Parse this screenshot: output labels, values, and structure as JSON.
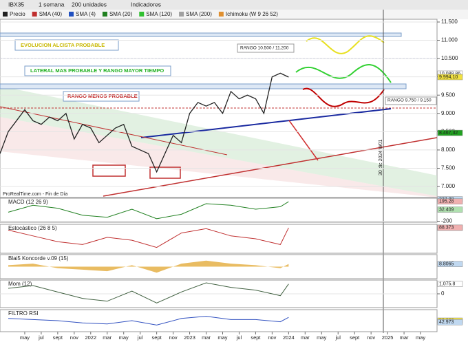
{
  "toolbar": {
    "instrument": "IBX35",
    "period": "1 semana",
    "units": "200 unidades",
    "indicators": "Indicadores"
  },
  "legend": [
    "Precio",
    "SMA (40)",
    "SMA (4)",
    "SMA (20)",
    "SMA (120)",
    "SMA (200)",
    "Ichimoku (W 9 26 52)"
  ],
  "annotations": [
    "EVOLUCION ALCISTA PROBABLE",
    "LATERAL MAS PROBABLE Y RANGO MAYOR TIEMPO",
    "RANGO MENOS PROBABLE",
    "RANGO 10.500 / 11.200",
    "RANGO 9.750 / 9.150",
    "30 dic 2024 W01",
    "ProRealTime.com - Fin de Día"
  ],
  "chart_data": [
    {
      "type": "line",
      "color": "#222222",
      "xlim": [
        "2021-02",
        "2025-07"
      ],
      "ylim": [
        6700,
        11575
      ],
      "xticks": [
        {
          "value": "2021-05",
          "label": "may"
        },
        {
          "value": "2021-07",
          "label": "jul"
        },
        {
          "value": "2021-09",
          "label": "sept"
        },
        {
          "value": "2021-11",
          "label": "nov"
        },
        {
          "value": "2022-01",
          "label": "2022"
        },
        {
          "value": "2022-03",
          "label": "mar"
        },
        {
          "value": "2022-05",
          "label": "may"
        },
        {
          "value": "2022-07",
          "label": "jul"
        },
        {
          "value": "2022-09",
          "label": "sept"
        },
        {
          "value": "2022-11",
          "label": "nov"
        },
        {
          "value": "2023-01",
          "label": "2023"
        },
        {
          "value": "2023-03",
          "label": "mar"
        },
        {
          "value": "2023-05",
          "label": "may"
        },
        {
          "value": "2023-07",
          "label": "jul"
        },
        {
          "value": "2023-09",
          "label": "sept"
        },
        {
          "value": "2023-11",
          "label": "nov"
        },
        {
          "value": "2024-01",
          "label": "2024"
        },
        {
          "value": "2024-03",
          "label": "mar"
        },
        {
          "value": "2024-05",
          "label": "may"
        },
        {
          "value": "2024-07",
          "label": "jul"
        },
        {
          "value": "2024-09",
          "label": "sept"
        },
        {
          "value": "2024-11",
          "label": "nov"
        },
        {
          "value": "2025-01",
          "label": "2025"
        },
        {
          "value": "2025-03",
          "label": "mar"
        },
        {
          "value": "2025-05",
          "label": "may"
        }
      ],
      "yticks": [
        {
          "value": 7000,
          "label": "7.000"
        },
        {
          "value": 7500,
          "label": "7.500"
        },
        {
          "value": 8000,
          "label": "8.000"
        },
        {
          "value": 8500,
          "label": "8.500"
        },
        {
          "value": 9000,
          "label": "9.000"
        },
        {
          "value": 9500,
          "label": "9.500"
        },
        {
          "value": 10000,
          "label": "10.000"
        },
        {
          "value": 10500,
          "label": "10.500"
        },
        {
          "value": 11000,
          "label": "11.000"
        },
        {
          "value": 11500,
          "label": "11.500"
        }
      ],
      "x": [
        "2021-02",
        "2021-03",
        "2021-04",
        "2021-05",
        "2021-06",
        "2021-07",
        "2021-08",
        "2021-09",
        "2021-10",
        "2021-11",
        "2021-12",
        "2022-01",
        "2022-02",
        "2022-03",
        "2022-04",
        "2022-05",
        "2022-06",
        "2022-07",
        "2022-08",
        "2022-09",
        "2022-10",
        "2022-11",
        "2022-12",
        "2023-01",
        "2023-02",
        "2023-03",
        "2023-04",
        "2023-05",
        "2023-06",
        "2023-07",
        "2023-08",
        "2023-09",
        "2023-10",
        "2023-11",
        "2023-12",
        "2024-01"
      ],
      "values": [
        7900,
        8500,
        8800,
        9100,
        8800,
        8700,
        8900,
        8800,
        9000,
        8300,
        8700,
        8600,
        8200,
        8400,
        8600,
        8700,
        8100,
        8000,
        7900,
        7400,
        7900,
        8400,
        8200,
        9000,
        9300,
        9200,
        9300,
        9000,
        9600,
        9400,
        9500,
        9400,
        9000,
        10000,
        10100,
        9994.1
      ],
      "markers": [
        {
          "value": 10088.86,
          "label": "10.088,86",
          "color": "#ffffff"
        },
        {
          "value": 9994.1,
          "label": "9.994,10",
          "color": "#f0e040"
        },
        {
          "value": 8467.32,
          "label": "8.467,32",
          "color": "#20a020"
        }
      ]
    },
    {
      "type": "line",
      "title": "MACD (12 26 9)",
      "color": "#208020",
      "ylim": [
        -220,
        260
      ],
      "yticks": [
        -200
      ],
      "x": [
        "2021-03",
        "2021-06",
        "2021-09",
        "2021-12",
        "2022-03",
        "2022-06",
        "2022-09",
        "2022-12",
        "2023-03",
        "2023-06",
        "2023-09",
        "2023-12",
        "2024-01"
      ],
      "values": [
        -20,
        120,
        60,
        -80,
        -120,
        40,
        -150,
        -60,
        150,
        120,
        40,
        90,
        190
      ],
      "markers": [
        {
          "value": 237.88,
          "label": "237.88",
          "color": "#c0d8f0"
        },
        {
          "value": 195.28,
          "label": "195.28",
          "color": "#f0b0b0"
        },
        {
          "value": 32.409,
          "label": "32.409",
          "color": "#b0e0b0"
        }
      ]
    },
    {
      "type": "line",
      "title": "Estocástico (26 8 5)",
      "color": "#c03030",
      "ylim": [
        0,
        100
      ],
      "yticks": [],
      "x": [
        "2021-03",
        "2021-06",
        "2021-09",
        "2021-12",
        "2022-03",
        "2022-06",
        "2022-09",
        "2022-12",
        "2023-03",
        "2023-06",
        "2023-09",
        "2023-12",
        "2024-01"
      ],
      "values": [
        80,
        60,
        40,
        30,
        55,
        45,
        20,
        70,
        85,
        60,
        50,
        30,
        88
      ],
      "markers": [
        {
          "value": 88.27,
          "label": "88.270",
          "color": "#b0e0b0"
        },
        {
          "value": 88.373,
          "label": "88.373",
          "color": "#f0b0b0"
        }
      ]
    },
    {
      "type": "area",
      "title": "Blai5 Koncorde v.09 (15)",
      "color": "#e0a020",
      "ylim": [
        -40,
        40
      ],
      "yticks": [],
      "x": [
        "2021-03",
        "2021-06",
        "2021-09",
        "2021-12",
        "2022-03",
        "2022-06",
        "2022-09",
        "2022-12",
        "2023-03",
        "2023-06",
        "2023-09",
        "2023-12",
        "2024-01"
      ],
      "values": [
        5,
        10,
        -5,
        -10,
        -15,
        5,
        -20,
        10,
        20,
        10,
        5,
        -5,
        9
      ],
      "markers": [
        {
          "value": 8.8065,
          "label": "8.8065",
          "color": "#c0d8f0"
        }
      ]
    },
    {
      "type": "line",
      "title": "Mom (12)",
      "color": "#406040",
      "ylim": [
        -1500,
        1500
      ],
      "yticks": [
        0
      ],
      "x": [
        "2021-03",
        "2021-06",
        "2021-09",
        "2021-12",
        "2022-03",
        "2022-06",
        "2022-09",
        "2022-12",
        "2023-03",
        "2023-06",
        "2023-09",
        "2023-12",
        "2024-01"
      ],
      "values": [
        600,
        900,
        200,
        -500,
        -800,
        300,
        -1000,
        200,
        1200,
        700,
        400,
        -200,
        1075.8
      ],
      "markers": [
        {
          "value": 1075.8,
          "label": "1,075.8",
          "color": "#ffffff"
        }
      ]
    },
    {
      "type": "line",
      "title": "FILTRO RSI",
      "color": "#3050c0",
      "ylim": [
        0,
        100
      ],
      "yticks": [],
      "x": [
        "2021-03",
        "2021-06",
        "2021-09",
        "2021-12",
        "2022-03",
        "2022-06",
        "2022-09",
        "2022-12",
        "2023-03",
        "2023-06",
        "2023-09",
        "2023-12",
        "2024-01"
      ],
      "values": [
        60,
        55,
        50,
        40,
        35,
        50,
        30,
        60,
        70,
        55,
        55,
        45,
        65
      ],
      "markers": [
        {
          "value": 50,
          "label": "50.000",
          "color": "#f0e040"
        },
        {
          "value": 42.973,
          "label": "42.973",
          "color": "#c0d8f0"
        }
      ]
    }
  ]
}
